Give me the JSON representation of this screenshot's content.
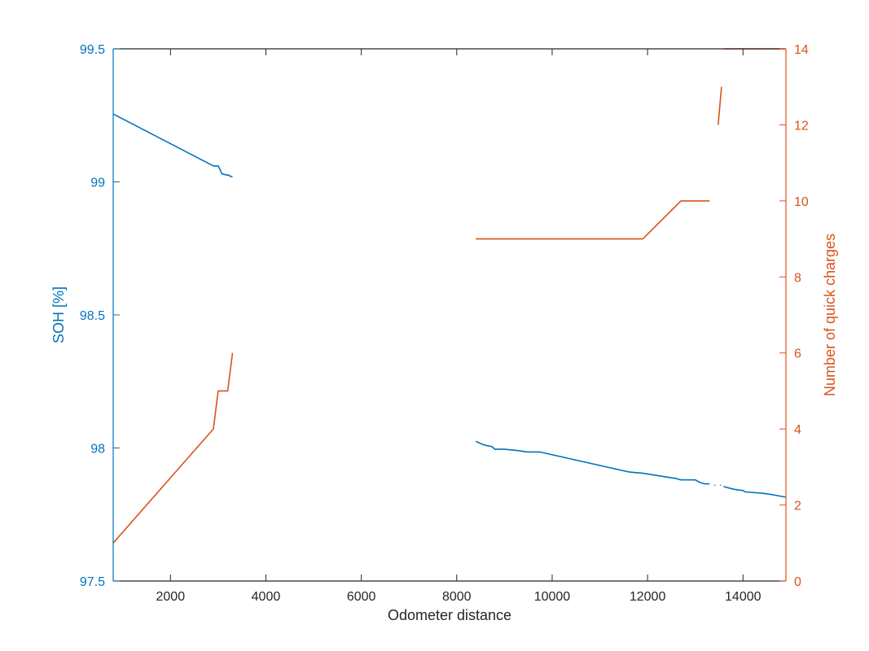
{
  "chart_data": {
    "type": "line",
    "title": "",
    "xlabel": "Odometer distance",
    "xlim": [
      800,
      14900
    ],
    "xticks": [
      2000,
      4000,
      6000,
      8000,
      10000,
      12000,
      14000
    ],
    "y_left": {
      "label": "SOH [%]",
      "lim": [
        97.5,
        99.5
      ],
      "ticks": [
        97.5,
        98,
        98.5,
        99,
        99.5
      ],
      "tick_labels": [
        "97.5",
        "98",
        "98.5",
        "99",
        "99.5"
      ],
      "color": "#0072BD"
    },
    "y_right": {
      "label": "Number of quick charges",
      "lim": [
        0,
        14
      ],
      "ticks": [
        0,
        2,
        4,
        6,
        8,
        10,
        12,
        14
      ],
      "tick_labels": [
        "0",
        "2",
        "4",
        "6",
        "8",
        "10",
        "12",
        "14"
      ],
      "color": "#D95319"
    },
    "grid": false,
    "series": [
      {
        "axis": "left",
        "color": "#0072BD",
        "segments": [
          [
            [
              800,
              99.255
            ],
            [
              2900,
              99.06
            ],
            [
              3000,
              99.06
            ],
            [
              3080,
              99.03
            ],
            [
              3200,
              99.025
            ],
            [
              3230,
              99.025
            ],
            [
              3260,
              99.02
            ],
            [
              3300,
              99.02
            ]
          ],
          [
            [
              8400,
              98.025
            ],
            [
              8520,
              98.015
            ],
            [
              8600,
              98.01
            ],
            [
              8740,
              98.005
            ],
            [
              8800,
              97.995
            ],
            [
              9000,
              97.995
            ],
            [
              9300,
              97.99
            ],
            [
              9480,
              97.985
            ],
            [
              9740,
              97.985
            ],
            [
              11600,
              97.91
            ],
            [
              11900,
              97.905
            ],
            [
              12600,
              97.885
            ],
            [
              12700,
              97.88
            ],
            [
              13000,
              97.88
            ],
            [
              13100,
              97.87
            ],
            [
              13200,
              97.865
            ],
            [
              13300,
              97.865
            ]
          ],
          [
            [
              13400,
              97.86
            ],
            [
              13420,
              97.86
            ]
          ],
          [
            [
              13520,
              97.86
            ],
            [
              13540,
              97.86
            ]
          ],
          [
            [
              13590,
              97.855
            ],
            [
              13800,
              97.845
            ],
            [
              14000,
              97.84
            ],
            [
              14050,
              97.835
            ],
            [
              14400,
              97.83
            ],
            [
              14600,
              97.825
            ],
            [
              14750,
              97.82
            ],
            [
              14900,
              97.815
            ]
          ]
        ]
      },
      {
        "axis": "right",
        "color": "#D95319",
        "segments": [
          [
            [
              800,
              1
            ],
            [
              2900,
              4
            ],
            [
              3000,
              5
            ],
            [
              3150,
              5
            ],
            [
              3200,
              5
            ],
            [
              3300,
              6
            ]
          ],
          [
            [
              8400,
              9
            ],
            [
              11900,
              9
            ],
            [
              12700,
              10
            ],
            [
              13300,
              10
            ]
          ],
          [
            [
              13480,
              12
            ],
            [
              13550,
              13
            ]
          ],
          [
            [
              13600,
              14
            ],
            [
              14900,
              14
            ]
          ]
        ]
      }
    ]
  }
}
